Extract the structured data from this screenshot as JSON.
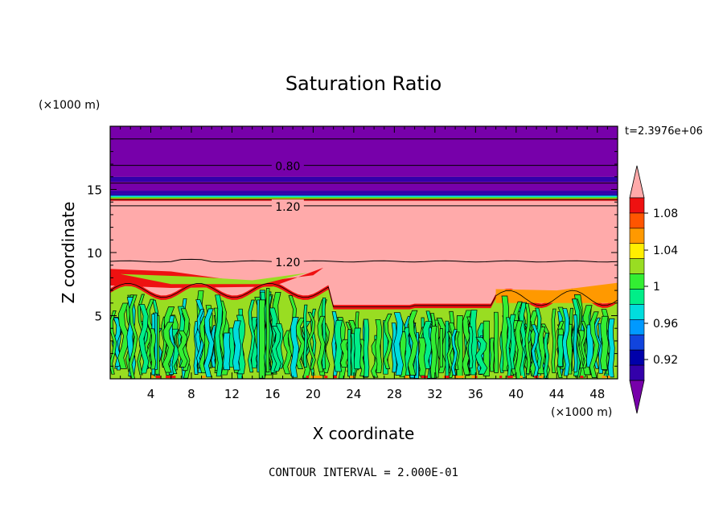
{
  "chart_data": {
    "type": "heatmap",
    "title": "Saturation Ratio",
    "xlabel": "X coordinate",
    "ylabel": "Z coordinate",
    "x_unit_label": "(×1000 m)",
    "y_unit_label": "(×1000 m)",
    "time_label": "t=2.3976e+06",
    "footer": "CONTOUR INTERVAL = 2.000E-01",
    "xlim": [
      0,
      50
    ],
    "ylim": [
      0,
      20
    ],
    "x_ticks": [
      4,
      8,
      12,
      16,
      20,
      24,
      28,
      32,
      36,
      40,
      44,
      48
    ],
    "y_ticks": [
      5,
      10,
      15
    ],
    "contour_labels": [
      {
        "text": "0.80",
        "x": 17.5,
        "z": 16.9
      },
      {
        "text": "1.20",
        "x": 17.5,
        "z": 13.7
      },
      {
        "text": "1.20",
        "x": 17.5,
        "z": 9.3
      }
    ],
    "colorbar": {
      "tick_labels": [
        "1.08",
        "1.04",
        "1",
        "0.96",
        "0.92"
      ],
      "colors_top_to_bottom": [
        "#ffaaaa",
        "#ee1111",
        "#ff5500",
        "#ff9900",
        "#ffee00",
        "#99dd22",
        "#33ee33",
        "#00ee88",
        "#00dddd",
        "#0099ff",
        "#1144dd",
        "#0000aa",
        "#3300aa",
        "#7700aa"
      ]
    },
    "layers_description": {
      "upper_purple": [
        14.5,
        20
      ],
      "moist_layer_pink": [
        5.5,
        14.2
      ],
      "boundary_layer_green": [
        0,
        6
      ]
    }
  }
}
